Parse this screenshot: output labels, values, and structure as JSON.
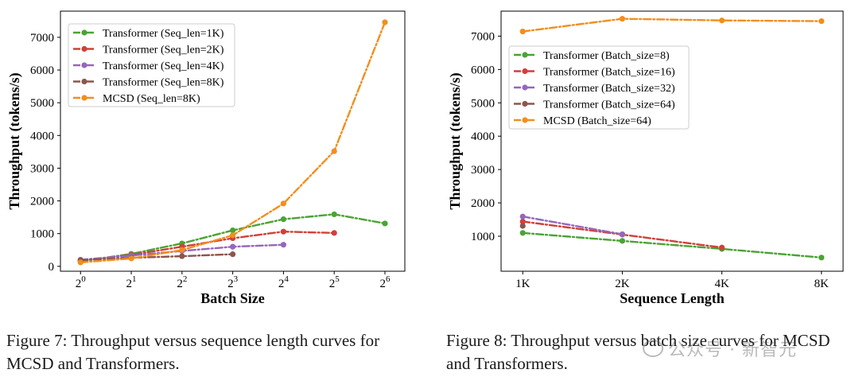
{
  "chart_data": [
    {
      "type": "line",
      "xscale": "log2",
      "xlabel": "Batch Size",
      "ylabel": "Throughput (tokens/s)",
      "x": [
        1,
        2,
        4,
        8,
        16,
        32,
        64
      ],
      "xticks": [
        {
          "value": 1,
          "base": "2",
          "exp": "0"
        },
        {
          "value": 2,
          "base": "2",
          "exp": "1"
        },
        {
          "value": 4,
          "base": "2",
          "exp": "2"
        },
        {
          "value": 8,
          "base": "2",
          "exp": "3"
        },
        {
          "value": 16,
          "base": "2",
          "exp": "4"
        },
        {
          "value": 32,
          "base": "2",
          "exp": "5"
        },
        {
          "value": 64,
          "base": "2",
          "exp": "6"
        }
      ],
      "yticks": [
        0,
        1000,
        2000,
        3000,
        4000,
        5000,
        6000,
        7000
      ],
      "ytick_labels": [
        "0",
        "1000",
        "2000",
        "3000",
        "4000",
        "5000",
        "6000",
        "7000"
      ],
      "xlim": [
        0.76,
        84
      ],
      "ylim": [
        -150,
        7800
      ],
      "legend_position": "top-left",
      "series": [
        {
          "name": "Transformer (Seq_len=1K)",
          "color": "#4aa335",
          "x": [
            1,
            2,
            4,
            8,
            16,
            32,
            64
          ],
          "values": [
            150,
            380,
            700,
            1100,
            1440,
            1590,
            1310
          ]
        },
        {
          "name": "Transformer (Seq_len=2K)",
          "color": "#d0403a",
          "x": [
            1,
            2,
            4,
            8,
            16,
            32
          ],
          "values": [
            180,
            350,
            600,
            860,
            1060,
            1020
          ]
        },
        {
          "name": "Transformer (Seq_len=4K)",
          "color": "#9467bd",
          "x": [
            1,
            2,
            4,
            8,
            16
          ],
          "values": [
            200,
            330,
            470,
            600,
            660
          ]
        },
        {
          "name": "Transformer (Seq_len=8K)",
          "color": "#8c564b",
          "x": [
            1,
            2,
            4,
            8
          ],
          "values": [
            190,
            260,
            310,
            370
          ]
        },
        {
          "name": "MCSD (Seq_len=8K)",
          "color": "#f28e1c",
          "x": [
            1,
            2,
            4,
            8,
            16,
            32,
            64
          ],
          "values": [
            120,
            240,
            500,
            950,
            1920,
            3520,
            7460
          ]
        }
      ]
    },
    {
      "type": "line",
      "xscale": "log2",
      "xlabel": "Sequence Length",
      "ylabel": "Throughput (tokens/s)",
      "x": [
        1,
        2,
        4,
        8
      ],
      "xticks": [
        {
          "value": 1,
          "label": "1K"
        },
        {
          "value": 2,
          "label": "2K"
        },
        {
          "value": 4,
          "label": "4K"
        },
        {
          "value": 8,
          "label": "8K"
        }
      ],
      "yticks": [
        1000,
        2000,
        3000,
        4000,
        5000,
        6000,
        7000
      ],
      "ytick_labels": [
        "1000",
        "2000",
        "3000",
        "4000",
        "5000",
        "6000",
        "7000"
      ],
      "xlim": [
        0.86,
        9.3
      ],
      "ylim": [
        -50,
        7750
      ],
      "legend_position": "upper-left",
      "series": [
        {
          "name": "Transformer (Batch_size=8)",
          "color": "#4aa335",
          "x": [
            1,
            2,
            4,
            8
          ],
          "values": [
            1100,
            860,
            620,
            360
          ]
        },
        {
          "name": "Transformer (Batch_size=16)",
          "color": "#d0403a",
          "x": [
            1,
            2,
            4
          ],
          "values": [
            1440,
            1050,
            660
          ]
        },
        {
          "name": "Transformer (Batch_size=32)",
          "color": "#9467bd",
          "x": [
            1,
            2
          ],
          "values": [
            1590,
            1060
          ]
        },
        {
          "name": "Transformer (Batch_size=64)",
          "color": "#8c564b",
          "x": [
            1
          ],
          "values": [
            1310
          ]
        },
        {
          "name": "MCSD (Batch_size=64)",
          "color": "#f28e1c",
          "x": [
            1,
            2,
            4,
            8
          ],
          "values": [
            7140,
            7520,
            7470,
            7450
          ]
        }
      ]
    }
  ],
  "captions": {
    "fig7": "Figure 7: Throughput versus sequence length curves for MCSD and Transformers.",
    "fig8": "Figure 8: Throughput versus batch size curves for MCSD and Transformers."
  },
  "watermark": "公众号 · 新智元"
}
